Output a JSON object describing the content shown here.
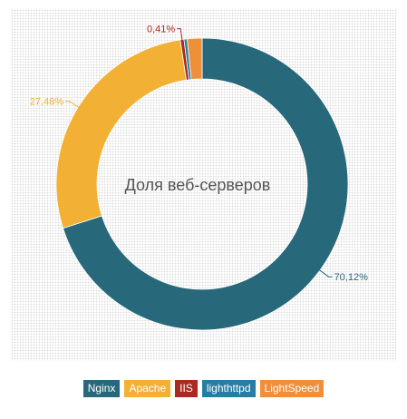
{
  "chart_data": {
    "type": "pie",
    "donut": true,
    "title": "Доля веб-серверов",
    "series": [
      {
        "name": "Nginx",
        "value": 70.12,
        "label": "70,12%",
        "color": "#27697a"
      },
      {
        "name": "Apache",
        "value": 27.48,
        "label": "27,48%",
        "color": "#f2b135"
      },
      {
        "name": "IIS",
        "value": 0.41,
        "label": "0,41%",
        "color": "#a92a22"
      },
      {
        "name": "lighthttpd",
        "value": 0.35,
        "label": "",
        "color": "#2a7ca3"
      },
      {
        "name": "LightSpeed",
        "value": 1.64,
        "label": "",
        "color": "#ef8f3a"
      }
    ],
    "legend_position": "bottom"
  }
}
